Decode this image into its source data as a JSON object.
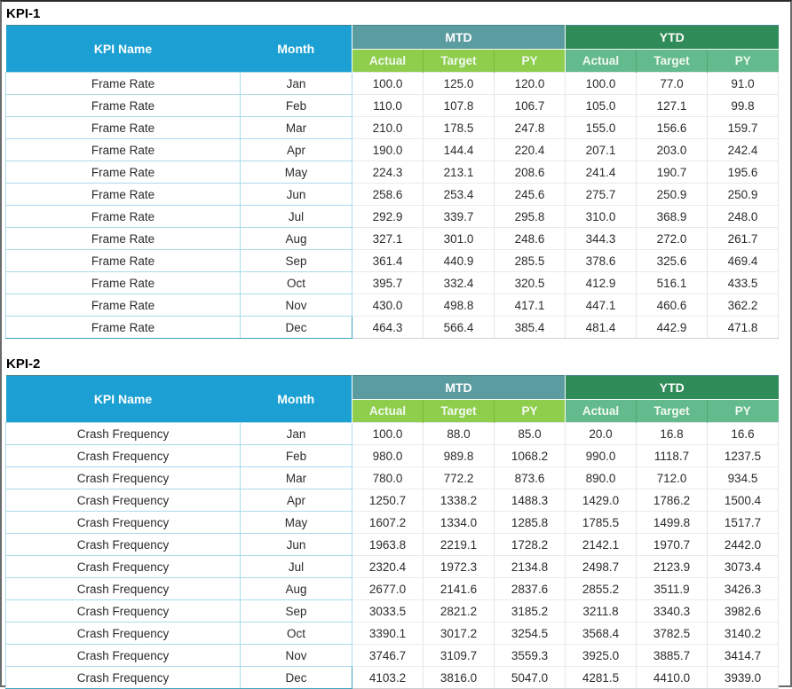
{
  "colors": {
    "header_blue": "#1CA0D3",
    "mtd_band_teal": "#5B9CA0",
    "ytd_band_green": "#2F8B57",
    "mtd_subheader_green": "#8FCE4D",
    "ytd_subheader_green": "#63BA8C",
    "row_border_teal": "#A9DAEB"
  },
  "tables": [
    {
      "title": "KPI-1",
      "kpi_name_header": "KPI Name",
      "month_header": "Month",
      "groups": [
        "MTD",
        "YTD"
      ],
      "sub_headers": [
        "Actual",
        "Target",
        "PY"
      ],
      "rows": [
        {
          "name": "Frame Rate",
          "month": "Jan",
          "values": [
            "100.0",
            "125.0",
            "120.0",
            "100.0",
            "77.0",
            "91.0"
          ]
        },
        {
          "name": "Frame Rate",
          "month": "Feb",
          "values": [
            "110.0",
            "107.8",
            "106.7",
            "105.0",
            "127.1",
            "99.8"
          ]
        },
        {
          "name": "Frame Rate",
          "month": "Mar",
          "values": [
            "210.0",
            "178.5",
            "247.8",
            "155.0",
            "156.6",
            "159.7"
          ]
        },
        {
          "name": "Frame Rate",
          "month": "Apr",
          "values": [
            "190.0",
            "144.4",
            "220.4",
            "207.1",
            "203.0",
            "242.4"
          ]
        },
        {
          "name": "Frame Rate",
          "month": "May",
          "values": [
            "224.3",
            "213.1",
            "208.6",
            "241.4",
            "190.7",
            "195.6"
          ]
        },
        {
          "name": "Frame Rate",
          "month": "Jun",
          "values": [
            "258.6",
            "253.4",
            "245.6",
            "275.7",
            "250.9",
            "250.9"
          ]
        },
        {
          "name": "Frame Rate",
          "month": "Jul",
          "values": [
            "292.9",
            "339.7",
            "295.8",
            "310.0",
            "368.9",
            "248.0"
          ]
        },
        {
          "name": "Frame Rate",
          "month": "Aug",
          "values": [
            "327.1",
            "301.0",
            "248.6",
            "344.3",
            "272.0",
            "261.7"
          ]
        },
        {
          "name": "Frame Rate",
          "month": "Sep",
          "values": [
            "361.4",
            "440.9",
            "285.5",
            "378.6",
            "325.6",
            "469.4"
          ]
        },
        {
          "name": "Frame Rate",
          "month": "Oct",
          "values": [
            "395.7",
            "332.4",
            "320.5",
            "412.9",
            "516.1",
            "433.5"
          ]
        },
        {
          "name": "Frame Rate",
          "month": "Nov",
          "values": [
            "430.0",
            "498.8",
            "417.1",
            "447.1",
            "460.6",
            "362.2"
          ]
        },
        {
          "name": "Frame Rate",
          "month": "Dec",
          "values": [
            "464.3",
            "566.4",
            "385.4",
            "481.4",
            "442.9",
            "471.8"
          ]
        }
      ]
    },
    {
      "title": "KPI-2",
      "kpi_name_header": "KPI Name",
      "month_header": "Month",
      "groups": [
        "MTD",
        "YTD"
      ],
      "sub_headers": [
        "Actual",
        "Target",
        "PY"
      ],
      "rows": [
        {
          "name": "Crash Frequency",
          "month": "Jan",
          "values": [
            "100.0",
            "88.0",
            "85.0",
            "20.0",
            "16.8",
            "16.6"
          ]
        },
        {
          "name": "Crash Frequency",
          "month": "Feb",
          "values": [
            "980.0",
            "989.8",
            "1068.2",
            "990.0",
            "1118.7",
            "1237.5"
          ]
        },
        {
          "name": "Crash Frequency",
          "month": "Mar",
          "values": [
            "780.0",
            "772.2",
            "873.6",
            "890.0",
            "712.0",
            "934.5"
          ]
        },
        {
          "name": "Crash Frequency",
          "month": "Apr",
          "values": [
            "1250.7",
            "1338.2",
            "1488.3",
            "1429.0",
            "1786.2",
            "1500.4"
          ]
        },
        {
          "name": "Crash Frequency",
          "month": "May",
          "values": [
            "1607.2",
            "1334.0",
            "1285.8",
            "1785.5",
            "1499.8",
            "1517.7"
          ]
        },
        {
          "name": "Crash Frequency",
          "month": "Jun",
          "values": [
            "1963.8",
            "2219.1",
            "1728.2",
            "2142.1",
            "1970.7",
            "2442.0"
          ]
        },
        {
          "name": "Crash Frequency",
          "month": "Jul",
          "values": [
            "2320.4",
            "1972.3",
            "2134.8",
            "2498.7",
            "2123.9",
            "3073.4"
          ]
        },
        {
          "name": "Crash Frequency",
          "month": "Aug",
          "values": [
            "2677.0",
            "2141.6",
            "2837.6",
            "2855.2",
            "3511.9",
            "3426.3"
          ]
        },
        {
          "name": "Crash Frequency",
          "month": "Sep",
          "values": [
            "3033.5",
            "2821.2",
            "3185.2",
            "3211.8",
            "3340.3",
            "3982.6"
          ]
        },
        {
          "name": "Crash Frequency",
          "month": "Oct",
          "values": [
            "3390.1",
            "3017.2",
            "3254.5",
            "3568.4",
            "3782.5",
            "3140.2"
          ]
        },
        {
          "name": "Crash Frequency",
          "month": "Nov",
          "values": [
            "3746.7",
            "3109.7",
            "3559.3",
            "3925.0",
            "3885.7",
            "3414.7"
          ]
        },
        {
          "name": "Crash Frequency",
          "month": "Dec",
          "values": [
            "4103.2",
            "3816.0",
            "5047.0",
            "4281.5",
            "4410.0",
            "3939.0"
          ]
        }
      ]
    }
  ]
}
